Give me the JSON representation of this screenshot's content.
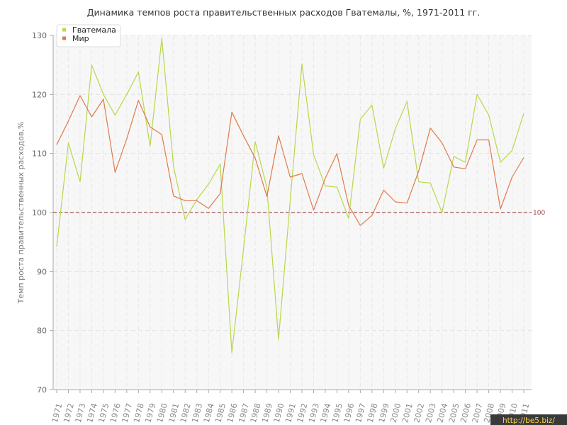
{
  "chart_data": {
    "type": "line",
    "title": "Динамика темпов роста правительственных расходов Гватемалы, %, 1971-2011 гг.",
    "ylabel": "Темп роста правительственных расходов,%",
    "xlabel": "",
    "ylim": [
      70,
      130
    ],
    "yticks": [
      70,
      80,
      90,
      100,
      110,
      120,
      130
    ],
    "categories": [
      "1971",
      "1972",
      "1973",
      "1974",
      "1975",
      "1976",
      "1977",
      "1978",
      "1979",
      "1980",
      "1981",
      "1982",
      "1983",
      "1984",
      "1985",
      "1986",
      "1987",
      "1988",
      "1989",
      "1990",
      "1991",
      "1992",
      "1993",
      "1994",
      "1995",
      "1996",
      "1997",
      "1998",
      "1999",
      "2000",
      "2001",
      "2002",
      "2003",
      "2004",
      "2005",
      "2006",
      "2007",
      "2008",
      "2009",
      "2010",
      "2011"
    ],
    "series": [
      {
        "name": "Гватемала",
        "color": "#b6d84a",
        "values": [
          94.2,
          111.8,
          105.2,
          125.0,
          120.0,
          116.5,
          120.0,
          123.8,
          111.2,
          129.5,
          107.8,
          98.8,
          102.2,
          104.8,
          108.2,
          76.2,
          93.8,
          112.0,
          104.2,
          78.5,
          102.0,
          125.2,
          109.8,
          104.5,
          104.3,
          99.0,
          115.8,
          118.2,
          107.5,
          114.2,
          118.8,
          105.2,
          105.0,
          100.0,
          109.5,
          108.5,
          120.0,
          116.5,
          108.5,
          110.5,
          116.8
        ]
      },
      {
        "name": "Мир",
        "color": "#e07a4a",
        "values": [
          111.5,
          115.5,
          119.8,
          116.2,
          119.2,
          106.8,
          112.5,
          119.0,
          114.5,
          113.2,
          102.8,
          102.0,
          102.0,
          100.7,
          103.2,
          117.0,
          113.0,
          109.2,
          102.7,
          113.0,
          106.0,
          106.6,
          100.4,
          105.8,
          110.0,
          101.2,
          97.8,
          99.5,
          103.8,
          101.8,
          101.6,
          107.0,
          114.3,
          111.8,
          107.7,
          107.4,
          112.3,
          112.3,
          100.6,
          106.0,
          109.3
        ]
      }
    ],
    "reference_line": {
      "value": 100,
      "label": "100",
      "color": "#8b2a2a"
    },
    "grid": true,
    "legend": "top-left",
    "background": "#f7f7f7"
  },
  "watermark": "http://be5.biz/"
}
